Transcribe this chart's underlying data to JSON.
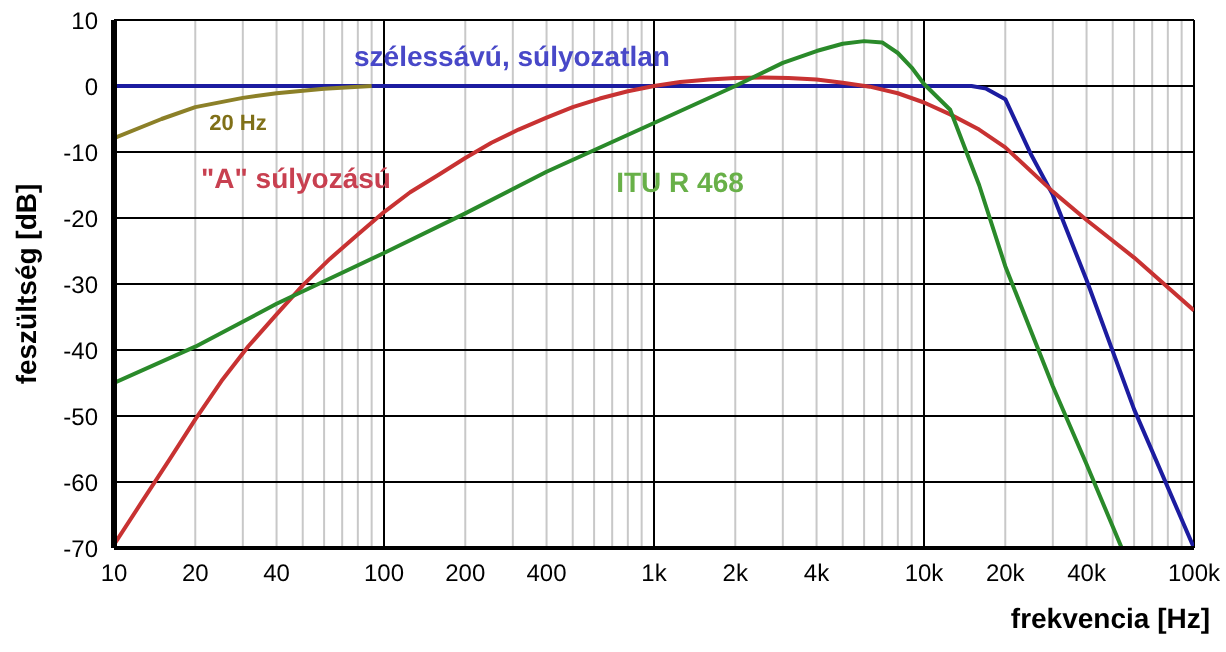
{
  "chart_data": {
    "type": "line",
    "xlabel": "frekvencia [Hz]",
    "ylabel": "feszültség [dB]",
    "log": "x",
    "xlim": [
      10,
      100000
    ],
    "ylim": [
      -70,
      10
    ],
    "xticks": [
      10,
      20,
      {
        "value": 30,
        "label": null
      },
      40,
      {
        "value": 50,
        "label": null
      },
      {
        "value": 60,
        "label": null
      },
      {
        "value": 70,
        "label": null
      },
      {
        "value": 80,
        "label": null
      },
      {
        "value": 90,
        "label": null
      },
      100,
      200,
      {
        "value": 300,
        "label": null
      },
      400,
      {
        "value": 500,
        "label": null
      },
      {
        "value": 600,
        "label": null
      },
      {
        "value": 700,
        "label": null
      },
      {
        "value": 800,
        "label": null
      },
      {
        "value": 900,
        "label": null
      },
      {
        "value": 1000,
        "label": "1k"
      },
      {
        "value": 2000,
        "label": "2k"
      },
      {
        "value": 3000,
        "label": null
      },
      {
        "value": 4000,
        "label": "4k"
      },
      {
        "value": 5000,
        "label": null
      },
      {
        "value": 6000,
        "label": null
      },
      {
        "value": 7000,
        "label": null
      },
      {
        "value": 8000,
        "label": null
      },
      {
        "value": 9000,
        "label": null
      },
      {
        "value": 10000,
        "label": "10k"
      },
      {
        "value": 20000,
        "label": "20k"
      },
      {
        "value": 30000,
        "label": null
      },
      {
        "value": 40000,
        "label": "40k"
      },
      {
        "value": 50000,
        "label": null
      },
      {
        "value": 60000,
        "label": null
      },
      {
        "value": 70000,
        "label": null
      },
      {
        "value": 80000,
        "label": null
      },
      {
        "value": 90000,
        "label": null
      },
      {
        "value": 100000,
        "label": "100k"
      }
    ],
    "yticks": [
      10,
      0,
      -10,
      -20,
      -30,
      -40,
      -50,
      -60,
      -70
    ],
    "grid": true,
    "legend": false,
    "marker": "none",
    "line_style": "solid",
    "series": [
      {
        "name": "szélessávú, súlyozatlan",
        "color": "#1c1ca0",
        "x": [
          10,
          15000,
          17000,
          20000,
          25000,
          30000,
          40000,
          60000,
          100000
        ],
        "values": [
          0,
          0,
          -0.4,
          -2,
          -10.5,
          -16.5,
          -29.4,
          -49,
          -70
        ]
      },
      {
        "name": "20 Hz",
        "color": "#8c8028",
        "x": [
          10,
          15,
          20,
          30,
          40,
          60,
          90
        ],
        "values": [
          -7.9,
          -5,
          -3.2,
          -1.8,
          -1.1,
          -0.4,
          0
        ]
      },
      {
        "name": "\"A\" súlyozású",
        "color": "#c83232",
        "x": [
          10,
          12.5,
          16,
          20,
          25,
          31.5,
          40,
          50,
          63,
          80,
          100,
          125,
          160,
          200,
          250,
          315,
          400,
          500,
          630,
          800,
          1000,
          1250,
          1600,
          2000,
          2500,
          3150,
          4000,
          5000,
          6300,
          8000,
          10000,
          12500,
          16000,
          20000,
          30000,
          40000,
          60000,
          100000
        ],
        "values": [
          -69.5,
          -63.4,
          -56.7,
          -50.5,
          -44.7,
          -39.4,
          -34.6,
          -30.2,
          -26.2,
          -22.5,
          -19.1,
          -16.1,
          -13.4,
          -10.9,
          -8.6,
          -6.6,
          -4.8,
          -3.2,
          -1.9,
          -0.8,
          0,
          0.6,
          1,
          1.2,
          1.3,
          1.2,
          1,
          0.5,
          -0.1,
          -1.1,
          -2.5,
          -4.3,
          -6.6,
          -9.3,
          -16,
          -20.3,
          -26,
          -34
        ]
      },
      {
        "name": "ITU R 468",
        "color": "#2a8a2a",
        "x": [
          10,
          20,
          40,
          100,
          200,
          400,
          1000,
          2000,
          3000,
          4000,
          5000,
          6000,
          7000,
          8000,
          9000,
          10000,
          12500,
          16000,
          20000,
          30000,
          40000,
          54000
        ],
        "values": [
          -45,
          -39.5,
          -33,
          -25.3,
          -19.3,
          -13,
          -5.6,
          0,
          3.5,
          5.3,
          6.4,
          6.8,
          6.6,
          5,
          2.8,
          0.3,
          -3.6,
          -15,
          -27.3,
          -45.5,
          -57.3,
          -70
        ]
      }
    ]
  }
}
